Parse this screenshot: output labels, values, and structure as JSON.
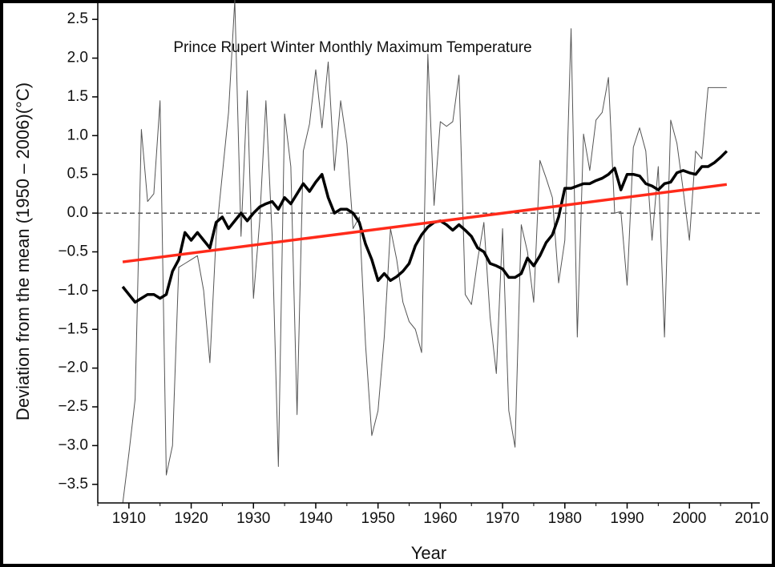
{
  "chart_data": {
    "type": "line",
    "title": "Prince Rupert Winter Monthly Maximum Temperature",
    "xlabel": "Year",
    "ylabel": "Deviation from the mean (1950 – 2006)(°C)",
    "x": [
      1909,
      1910,
      1911,
      1912,
      1913,
      1914,
      1915,
      1916,
      1917,
      1918,
      1919,
      1920,
      1921,
      1922,
      1923,
      1924,
      1925,
      1926,
      1927,
      1928,
      1929,
      1930,
      1931,
      1932,
      1933,
      1934,
      1935,
      1936,
      1937,
      1938,
      1939,
      1940,
      1941,
      1942,
      1943,
      1944,
      1945,
      1946,
      1947,
      1948,
      1949,
      1950,
      1951,
      1952,
      1953,
      1954,
      1955,
      1956,
      1957,
      1958,
      1959,
      1960,
      1961,
      1962,
      1963,
      1964,
      1965,
      1966,
      1967,
      1968,
      1969,
      1970,
      1971,
      1972,
      1973,
      1974,
      1975,
      1976,
      1977,
      1978,
      1979,
      1980,
      1981,
      1982,
      1983,
      1984,
      1985,
      1986,
      1987,
      1988,
      1989,
      1990,
      1991,
      1992,
      1993,
      1994,
      1995,
      1996,
      1997,
      1998,
      1999,
      2000,
      2001,
      2002,
      2003,
      2004,
      2005,
      2006
    ],
    "series": [
      {
        "color": "#555555",
        "width": 1,
        "values": [
          -3.75,
          -3.1,
          -2.4,
          1.08,
          0.15,
          0.25,
          1.45,
          -3.38,
          -3.0,
          -0.7,
          -0.65,
          -0.6,
          -0.55,
          -1.0,
          -1.93,
          -0.3,
          0.5,
          1.3,
          2.75,
          -0.3,
          1.58,
          -1.1,
          -0.1,
          1.45,
          -0.3,
          -3.27,
          1.28,
          0.6,
          -2.6,
          0.8,
          1.15,
          1.85,
          1.1,
          1.95,
          0.55,
          1.45,
          0.9,
          -0.2,
          -0.05,
          -1.7,
          -2.87,
          -2.55,
          -1.6,
          -0.2,
          -0.6,
          -1.15,
          -1.4,
          -1.5,
          -1.8,
          2.05,
          0.1,
          1.18,
          1.12,
          1.18,
          1.78,
          -1.05,
          -1.18,
          -0.6,
          -0.12,
          -1.35,
          -2.07,
          -0.2,
          -2.55,
          -3.02,
          -0.15,
          -0.5,
          -1.15,
          0.68,
          0.45,
          0.2,
          -0.9,
          -0.35,
          2.38,
          -1.6,
          1.02,
          0.55,
          1.2,
          1.3,
          1.75,
          0.0,
          0.02,
          -0.93,
          0.85,
          1.1,
          0.8,
          -0.35,
          0.6,
          -1.6,
          1.2,
          0.9,
          0.3,
          -0.35,
          0.8,
          0.7,
          1.62,
          1.62,
          1.62,
          1.62
        ]
      },
      {
        "color": "#000000",
        "width": 3.5,
        "values": [
          -0.95,
          -1.05,
          -1.15,
          -1.1,
          -1.05,
          -1.05,
          -1.1,
          -1.05,
          -0.75,
          -0.6,
          -0.25,
          -0.35,
          -0.25,
          -0.35,
          -0.45,
          -0.12,
          -0.05,
          -0.2,
          -0.1,
          0.0,
          -0.1,
          0.0,
          0.08,
          0.12,
          0.15,
          0.05,
          0.2,
          0.12,
          0.25,
          0.38,
          0.28,
          0.4,
          0.5,
          0.2,
          0.0,
          0.05,
          0.05,
          0.0,
          -0.12,
          -0.4,
          -0.6,
          -0.87,
          -0.78,
          -0.87,
          -0.82,
          -0.75,
          -0.65,
          -0.42,
          -0.28,
          -0.18,
          -0.12,
          -0.1,
          -0.15,
          -0.22,
          -0.15,
          -0.22,
          -0.3,
          -0.45,
          -0.5,
          -0.65,
          -0.68,
          -0.72,
          -0.83,
          -0.83,
          -0.78,
          -0.58,
          -0.68,
          -0.55,
          -0.38,
          -0.28,
          -0.05,
          0.32,
          0.32,
          0.35,
          0.38,
          0.38,
          0.42,
          0.45,
          0.5,
          0.58,
          0.3,
          0.5,
          0.5,
          0.48,
          0.38,
          0.35,
          0.3,
          0.38,
          0.4,
          0.52,
          0.55,
          0.52,
          0.5,
          0.6,
          0.6,
          0.65,
          0.72,
          0.8
        ]
      },
      {
        "color": "#ff2a1a",
        "width": 3.5,
        "x": [
          1909,
          2006
        ],
        "values": [
          -0.63,
          0.37
        ]
      }
    ],
    "hline": 0,
    "xlim": [
      1905,
      2011.3
    ],
    "ylim": [
      -3.74,
      2.75
    ],
    "xticks": [
      1910,
      1920,
      1930,
      1940,
      1950,
      1960,
      1970,
      1980,
      1990,
      2000,
      2010
    ],
    "xminorticks": [
      1905,
      1915,
      1925,
      1935,
      1945,
      1955,
      1965,
      1975,
      1985,
      1995,
      2005
    ],
    "yticks": [
      {
        "value": -3.5,
        "label": "−3.5"
      },
      {
        "value": -3,
        "label": "−3.0"
      },
      {
        "value": -2.5,
        "label": "−2.5"
      },
      {
        "value": -2,
        "label": "−2.0"
      },
      {
        "value": -1.5,
        "label": "−1.5"
      },
      {
        "value": -1,
        "label": "−1.0"
      },
      {
        "value": -0.5,
        "label": "−0.5"
      },
      {
        "value": 0,
        "label": "0.0"
      },
      0.5,
      {
        "value": 1,
        "label": "1.0"
      },
      1.5,
      {
        "value": 2,
        "label": "2.0"
      },
      2.5
    ]
  }
}
